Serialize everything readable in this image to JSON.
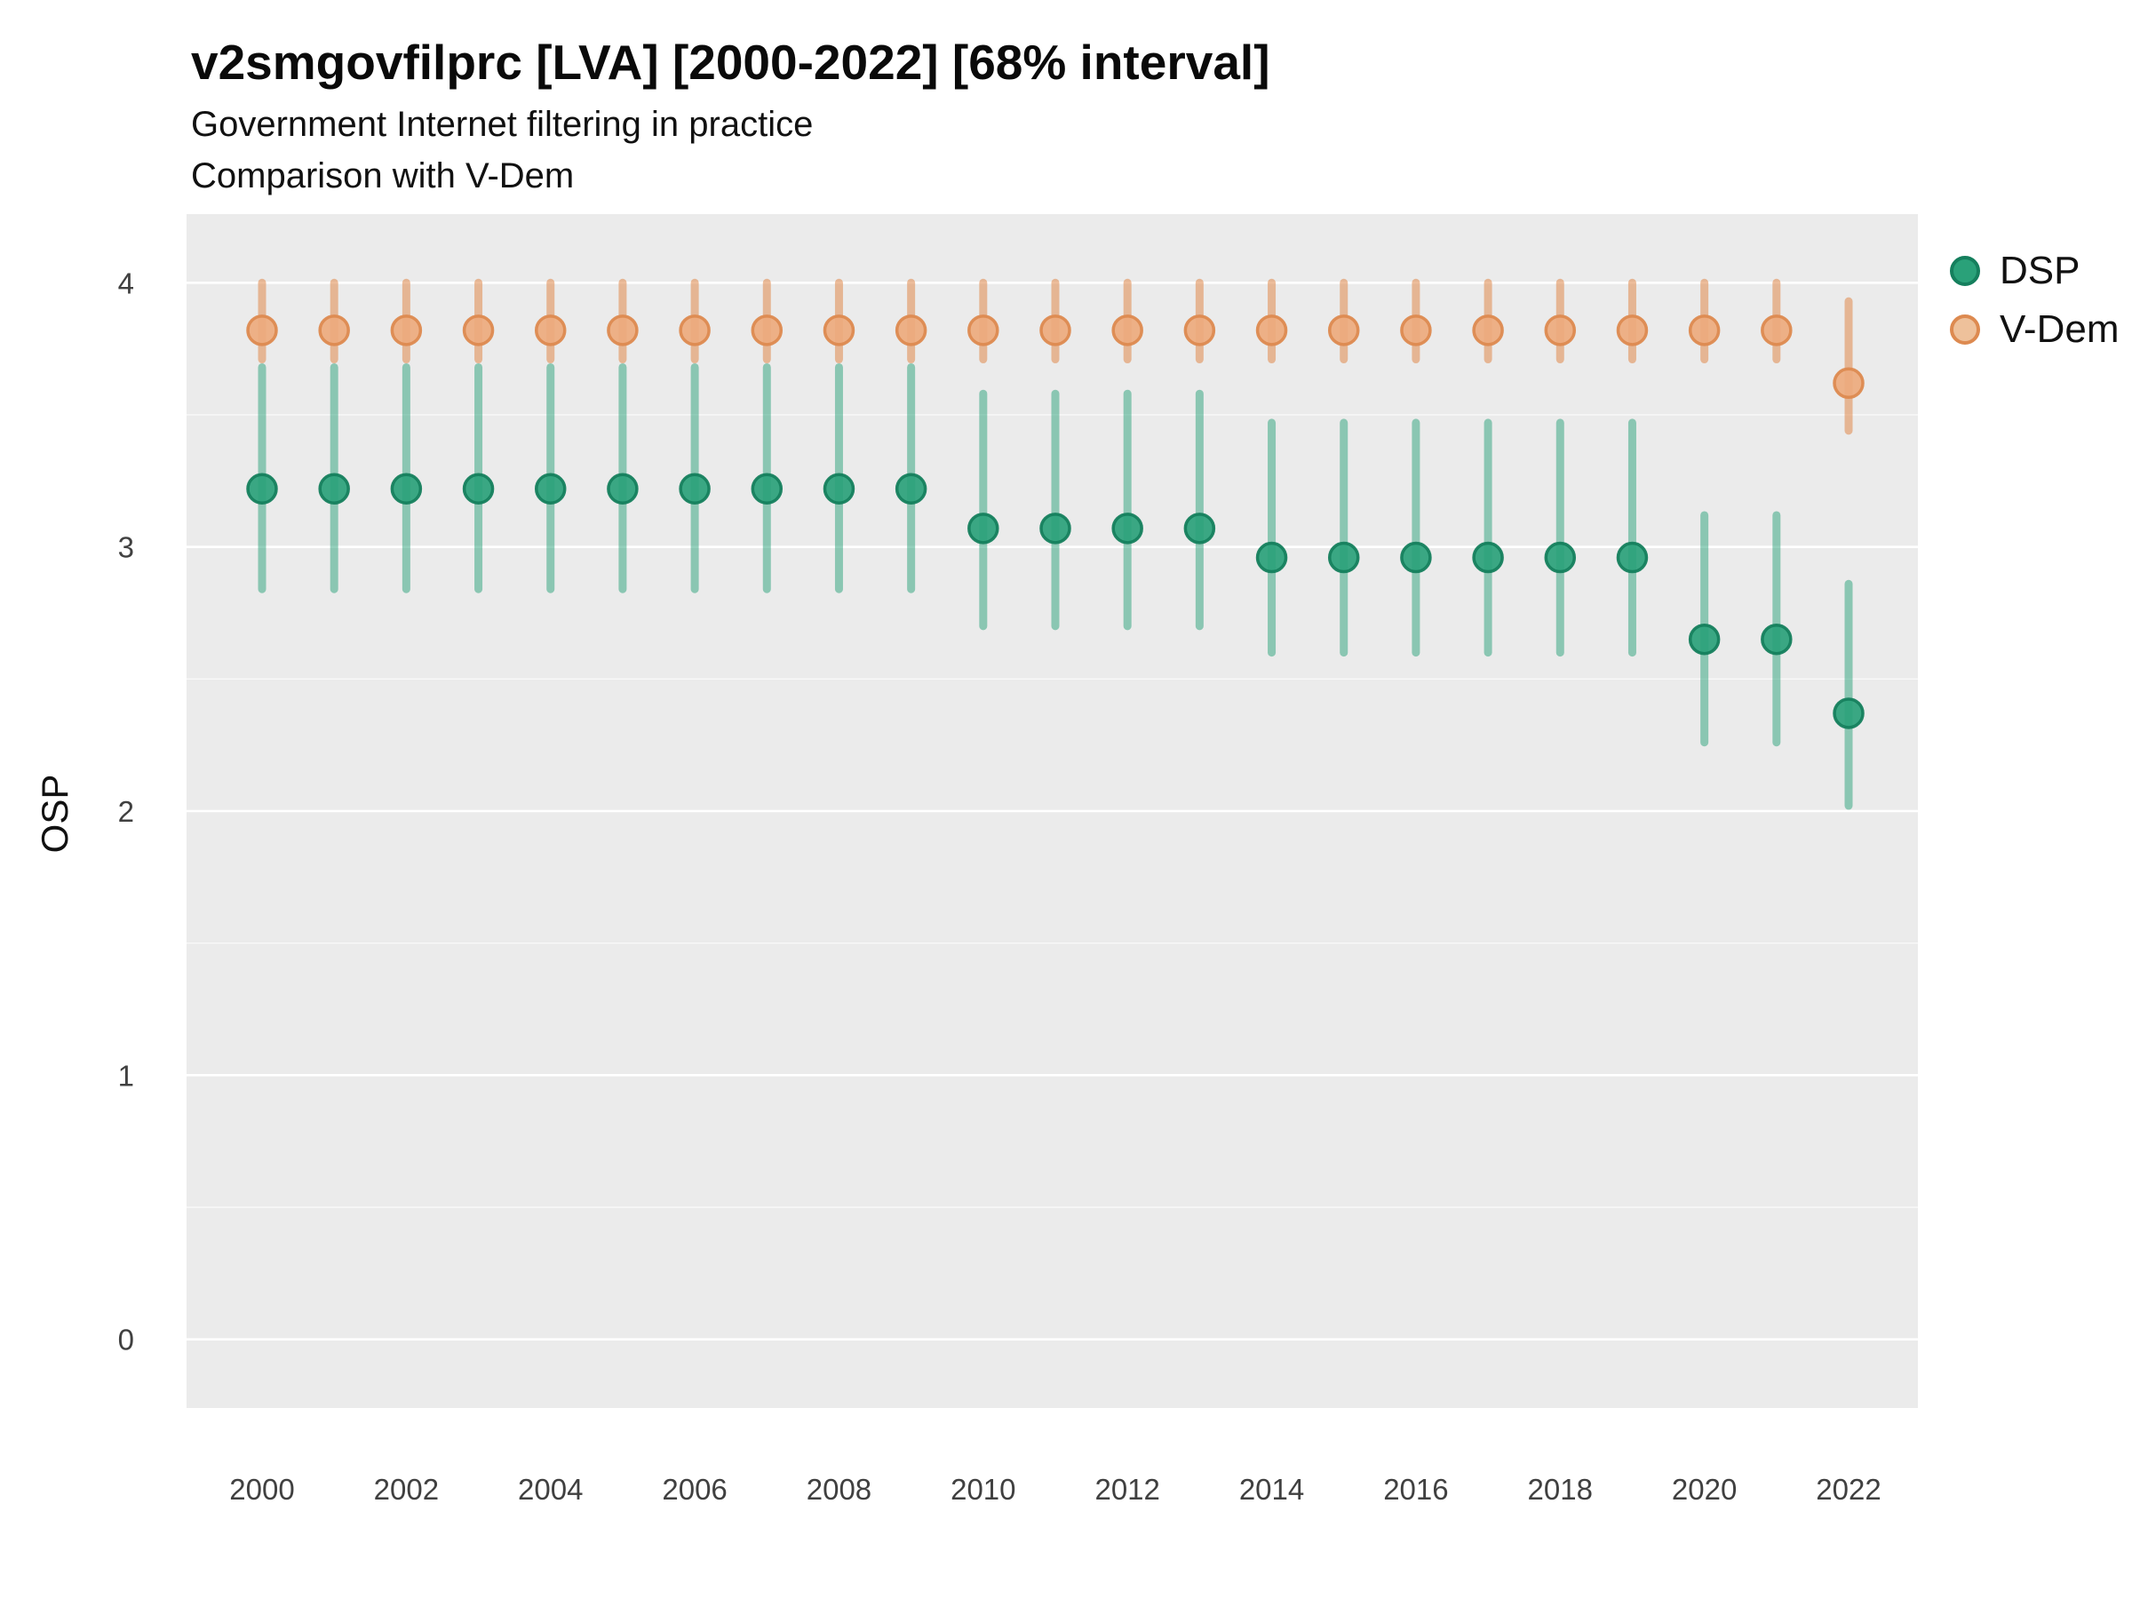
{
  "header": {
    "title": "v2smgovfilprc [LVA] [2000-2022] [68% interval]",
    "subtitle_line1": "Government Internet filtering in practice",
    "subtitle_line2": "Comparison with V-Dem"
  },
  "legend": {
    "items": [
      {
        "label": "DSP",
        "fill": "#2aa179",
        "stroke": "#157f5d"
      },
      {
        "label": "V-Dem",
        "fill": "#eec19b",
        "stroke": "#dd8a50"
      }
    ]
  },
  "chart_data": {
    "type": "scatter",
    "subtype": "pointrange-errorbar",
    "title": "v2smgovfilprc [LVA] [2000-2022] [68% interval]",
    "subtitle": "Government Internet filtering in practice — Comparison with V-Dem",
    "xlabel": "",
    "ylabel": "OSP",
    "ylim": [
      -0.26,
      4.26
    ],
    "yticks": [
      0,
      1,
      2,
      3,
      4
    ],
    "yticks_minor": [
      0.5,
      1.5,
      2.5,
      3.5
    ],
    "xticks": [
      2000,
      2002,
      2004,
      2006,
      2008,
      2010,
      2012,
      2014,
      2016,
      2018,
      2020,
      2022
    ],
    "x": [
      2000,
      2001,
      2002,
      2003,
      2004,
      2005,
      2006,
      2007,
      2008,
      2009,
      2010,
      2011,
      2012,
      2013,
      2014,
      2015,
      2016,
      2017,
      2018,
      2019,
      2020,
      2021,
      2022
    ],
    "interval": "68%",
    "panel_color": "#EBEBEB",
    "grid_color": "#FFFFFF",
    "series": [
      {
        "name": "DSP",
        "point_color": "#2aa179",
        "point_stroke": "#157f5d",
        "bar_color": "#2aa179",
        "bar_opacity": 0.5,
        "values": [
          3.22,
          3.22,
          3.22,
          3.22,
          3.22,
          3.22,
          3.22,
          3.22,
          3.22,
          3.22,
          3.07,
          3.07,
          3.07,
          3.07,
          2.96,
          2.96,
          2.96,
          2.96,
          2.96,
          2.96,
          2.65,
          2.65,
          2.37
        ],
        "lower": [
          2.84,
          2.84,
          2.84,
          2.84,
          2.84,
          2.84,
          2.84,
          2.84,
          2.84,
          2.84,
          2.7,
          2.7,
          2.7,
          2.7,
          2.6,
          2.6,
          2.6,
          2.6,
          2.6,
          2.6,
          2.26,
          2.26,
          2.02
        ],
        "upper": [
          3.68,
          3.68,
          3.68,
          3.68,
          3.68,
          3.68,
          3.68,
          3.68,
          3.68,
          3.68,
          3.58,
          3.58,
          3.58,
          3.58,
          3.47,
          3.47,
          3.47,
          3.47,
          3.47,
          3.47,
          3.12,
          3.12,
          2.86
        ]
      },
      {
        "name": "V-Dem",
        "point_color": "#edaa7d",
        "point_stroke": "#dd8a50",
        "bar_color": "#e2955e",
        "bar_opacity": 0.62,
        "values": [
          3.82,
          3.82,
          3.82,
          3.82,
          3.82,
          3.82,
          3.82,
          3.82,
          3.82,
          3.82,
          3.82,
          3.82,
          3.82,
          3.82,
          3.82,
          3.82,
          3.82,
          3.82,
          3.82,
          3.82,
          3.82,
          3.82,
          3.62
        ],
        "lower": [
          3.71,
          3.71,
          3.71,
          3.71,
          3.71,
          3.71,
          3.71,
          3.71,
          3.71,
          3.71,
          3.71,
          3.71,
          3.71,
          3.71,
          3.71,
          3.71,
          3.71,
          3.71,
          3.71,
          3.71,
          3.71,
          3.71,
          3.44
        ],
        "upper": [
          4.0,
          4.0,
          4.0,
          4.0,
          4.0,
          4.0,
          4.0,
          4.0,
          4.0,
          4.0,
          4.0,
          4.0,
          4.0,
          4.0,
          4.0,
          4.0,
          4.0,
          4.0,
          4.0,
          4.0,
          4.0,
          4.0,
          3.93
        ]
      }
    ]
  }
}
